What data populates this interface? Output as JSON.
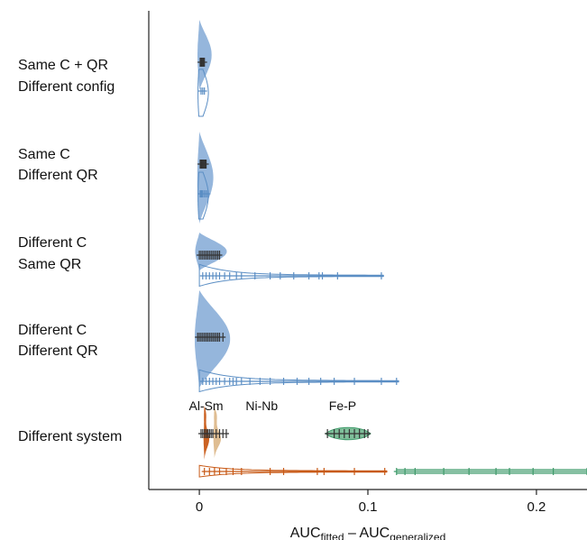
{
  "chart_data": {
    "type": "violin",
    "xlabel": {
      "main": "AUC",
      "sub1": "fitted",
      "sep": " – AUC",
      "sub2": "generalized"
    },
    "xlim": [
      -0.03,
      0.23
    ],
    "xticks": [
      0,
      0.1,
      0.2
    ],
    "xtick_labels": [
      "0",
      "0.1",
      "0.2"
    ],
    "colors": {
      "blue": "#5b8ec4",
      "blue_fill": "#8fb2da",
      "dark": "#333333",
      "orange": "#c85a17",
      "tan": "#ddb98c",
      "green": "#3f9a6a",
      "green_fill": "#7fbf9a"
    },
    "groups": [
      {
        "label_lines": [
          "Same C + QR",
          "Different config"
        ],
        "upper_points": [
          0.0005,
          0.001,
          0.0015,
          0.002,
          0.0025,
          0.003
        ],
        "lower_points": [
          0.001,
          0.002,
          0.003
        ]
      },
      {
        "label_lines": [
          "Same C",
          "Different QR"
        ],
        "upper_points": [
          0.0005,
          0.001,
          0.0015,
          0.002,
          0.0025,
          0.003,
          0.0035,
          0.004
        ],
        "lower_points": [
          0.0005,
          0.001,
          0.0015,
          0.002,
          0.003,
          0.004,
          0.005
        ]
      },
      {
        "label_lines": [
          "Different C",
          "Same QR"
        ],
        "upper_points": [
          0.0,
          0.001,
          0.002,
          0.003,
          0.004,
          0.005,
          0.006,
          0.007,
          0.008,
          0.009,
          0.01,
          0.011,
          0.012
        ],
        "lower_points": [
          0.002,
          0.004,
          0.006,
          0.008,
          0.01,
          0.012,
          0.015,
          0.018,
          0.022,
          0.025,
          0.033,
          0.042,
          0.048,
          0.056,
          0.065,
          0.071,
          0.073,
          0.082,
          0.108
        ]
      },
      {
        "label_lines": [
          "Different C",
          "Different QR"
        ],
        "upper_points": [
          -0.001,
          0.0,
          0.001,
          0.002,
          0.003,
          0.004,
          0.005,
          0.006,
          0.007,
          0.008,
          0.009,
          0.01,
          0.011,
          0.012,
          0.014
        ],
        "lower_points": [
          0.002,
          0.004,
          0.006,
          0.008,
          0.01,
          0.012,
          0.015,
          0.018,
          0.02,
          0.022,
          0.025,
          0.03,
          0.036,
          0.042,
          0.05,
          0.058,
          0.065,
          0.072,
          0.08,
          0.092,
          0.108,
          0.117
        ]
      },
      {
        "label_lines": [
          "Different system"
        ],
        "systems": [
          {
            "name": "Al-Sm",
            "points": [
              0.001,
              0.002,
              0.003,
              0.004,
              0.005,
              0.006,
              0.007
            ]
          },
          {
            "name": "Ni-Nb",
            "points": [
              0.004,
              0.006,
              0.008,
              0.01,
              0.012,
              0.014,
              0.016
            ]
          },
          {
            "name": "Fe-P",
            "points": [
              0.076,
              0.08,
              0.083,
              0.086,
              0.089,
              0.092,
              0.095,
              0.098,
              0.1
            ]
          }
        ],
        "lower_points_orange": [
          0.003,
          0.006,
          0.009,
          0.012,
          0.016,
          0.02,
          0.025,
          0.042,
          0.05,
          0.07,
          0.074,
          0.092,
          0.11
        ],
        "lower_points_green": [
          0.117,
          0.122,
          0.128,
          0.145,
          0.16,
          0.176,
          0.184,
          0.198,
          0.21,
          0.23
        ]
      }
    ]
  }
}
